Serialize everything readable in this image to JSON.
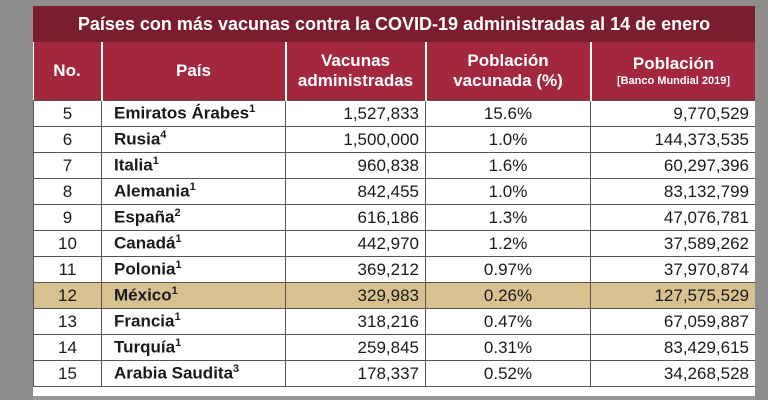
{
  "title": "Países con más vacunas contra la COVID-19 administradas al 14 de enero",
  "headers": {
    "no": "No.",
    "pais": "País",
    "vacunas_line1": "Vacunas",
    "vacunas_line2": "administradas",
    "poblacion_vac_line1": "Población",
    "poblacion_vac_line2": "vacunada (%)",
    "poblacion_line1": "Población",
    "poblacion_line2": "[Banco Mundial 2019]"
  },
  "rows": [
    {
      "no": "5",
      "pais": "Emiratos Árabes",
      "sup": "1",
      "vacunas": "1,527,833",
      "pct": "15.6%",
      "poblacion": "9,770,529"
    },
    {
      "no": "6",
      "pais": "Rusia",
      "sup": "4",
      "vacunas": "1,500,000",
      "pct": "1.0%",
      "poblacion": "144,373,535"
    },
    {
      "no": "7",
      "pais": "Italia",
      "sup": "1",
      "vacunas": "960,838",
      "pct": "1.6%",
      "poblacion": "60,297,396"
    },
    {
      "no": "8",
      "pais": "Alemania",
      "sup": "1",
      "vacunas": "842,455",
      "pct": "1.0%",
      "poblacion": "83,132,799"
    },
    {
      "no": "9",
      "pais": "España",
      "sup": "2",
      "vacunas": "616,186",
      "pct": "1.3%",
      "poblacion": "47,076,781"
    },
    {
      "no": "10",
      "pais": "Canadá",
      "sup": "1",
      "vacunas": "442,970",
      "pct": "1.2%",
      "poblacion": "37,589,262"
    },
    {
      "no": "11",
      "pais": "Polonia",
      "sup": "1",
      "vacunas": "369,212",
      "pct": "0.97%",
      "poblacion": "37,970,874"
    },
    {
      "no": "12",
      "pais": "México",
      "sup": "1",
      "vacunas": "329,983",
      "pct": "0.26%",
      "poblacion": "127,575,529"
    },
    {
      "no": "13",
      "pais": "Francia",
      "sup": "1",
      "vacunas": "318,216",
      "pct": "0.47%",
      "poblacion": "67,059,887"
    },
    {
      "no": "14",
      "pais": "Turquía",
      "sup": "1",
      "vacunas": "259,845",
      "pct": "0.31%",
      "poblacion": "83,429,615"
    },
    {
      "no": "15",
      "pais": "Arabia Saudita",
      "sup": "3",
      "vacunas": "178,337",
      "pct": "0.52%",
      "poblacion": "34,268,528"
    }
  ],
  "highlight_row_no": "12",
  "colors": {
    "title_bg": "#7a1d2e",
    "header_bg": "#a3273d",
    "highlight_bg": "#d7c190"
  }
}
